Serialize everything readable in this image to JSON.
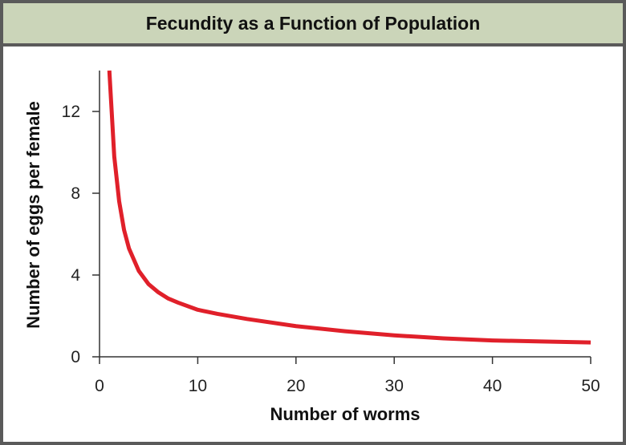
{
  "chart_data": {
    "type": "line",
    "title": "Fecundity as a Function of Population",
    "xlabel": "Number of worms",
    "ylabel": "Number of eggs per female",
    "xlim": [
      0,
      50
    ],
    "ylim": [
      0,
      14
    ],
    "xticks": [
      0,
      10,
      20,
      30,
      40,
      50
    ],
    "yticks": [
      0,
      4,
      8,
      12
    ],
    "grid": false,
    "series": [
      {
        "color": "#e0202a",
        "x": [
          1,
          1.5,
          2,
          2.5,
          3,
          4,
          5,
          6,
          7,
          8,
          10,
          12,
          15,
          20,
          25,
          30,
          35,
          40,
          45,
          50
        ],
        "y": [
          14.0,
          9.8,
          7.6,
          6.2,
          5.3,
          4.2,
          3.55,
          3.15,
          2.85,
          2.65,
          2.3,
          2.1,
          1.85,
          1.5,
          1.25,
          1.05,
          0.9,
          0.8,
          0.75,
          0.7
        ]
      }
    ]
  }
}
